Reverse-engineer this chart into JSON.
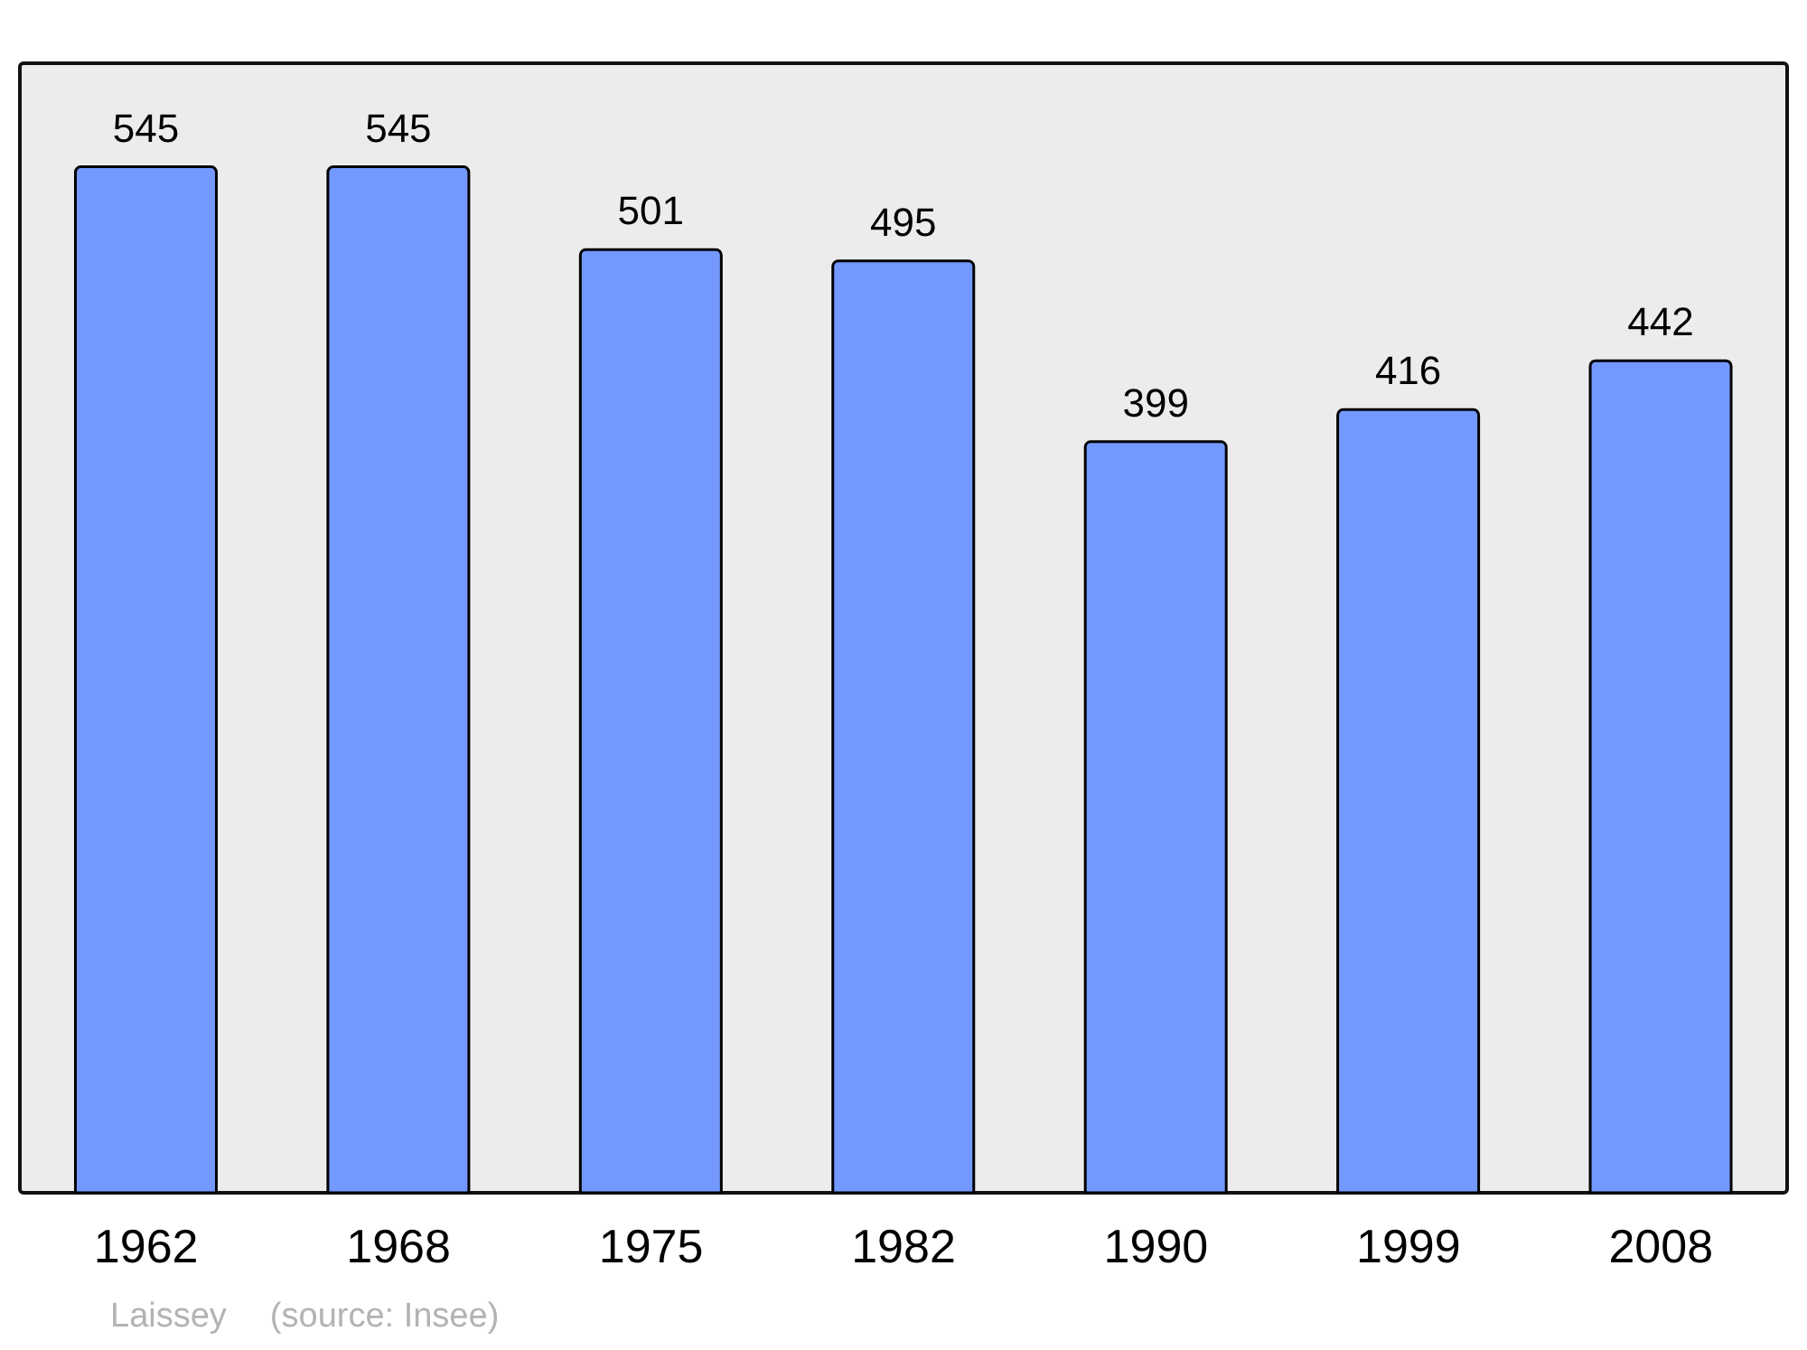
{
  "chart_data": {
    "type": "bar",
    "categories": [
      "1962",
      "1968",
      "1975",
      "1982",
      "1990",
      "1999",
      "2008"
    ],
    "values": [
      545,
      545,
      501,
      495,
      399,
      416,
      442
    ],
    "color": "#7399ff",
    "ylim": [
      0,
      600
    ],
    "data_labels": true,
    "annotations": [
      "Laissey",
      "(source: Insee)"
    ]
  }
}
